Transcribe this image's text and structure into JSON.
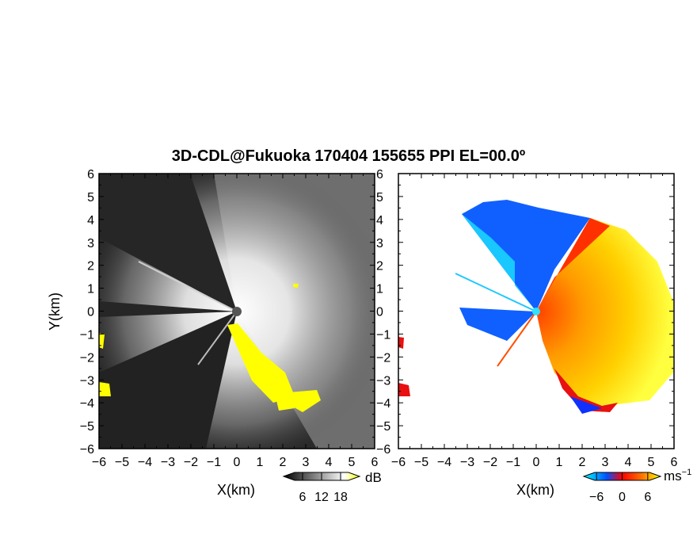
{
  "title": "3D-CDL@Fukuoka 170404 155655 PPI EL=00.0º",
  "chart_data": [
    {
      "type": "heatmap",
      "panel": "reflectivity",
      "xlabel": "X(km)",
      "ylabel": "Y(km)",
      "xlim": [
        -6,
        6
      ],
      "ylim": [
        -6,
        6
      ],
      "xticks": [
        "−6",
        "−5",
        "−4",
        "−3",
        "−2",
        "−1",
        "0",
        "1",
        "2",
        "3",
        "4",
        "5",
        "6"
      ],
      "yticks": [
        "6",
        "5",
        "4",
        "3",
        "2",
        "1",
        "0",
        "−1",
        "−2",
        "−3",
        "−4",
        "−5",
        "−6"
      ],
      "colorbar": {
        "unit": "dB",
        "range": [
          0,
          24
        ],
        "tick_labels": [
          "6",
          "12",
          "18"
        ],
        "colors": [
          "#000000",
          "#ffffff",
          "#ffff00"
        ]
      }
    },
    {
      "type": "heatmap",
      "panel": "doppler velocity",
      "xlabel": "X(km)",
      "xlim": [
        -6,
        6
      ],
      "ylim": [
        -6,
        6
      ],
      "xticks": [
        "−6",
        "−5",
        "−4",
        "−3",
        "−2",
        "−1",
        "0",
        "1",
        "2",
        "3",
        "4",
        "5",
        "6"
      ],
      "yticks": [
        "6",
        "5",
        "4",
        "3",
        "2",
        "1",
        "0",
        "−1",
        "−2",
        "−3",
        "−4",
        "−5",
        "−6"
      ],
      "colorbar": {
        "unit": "ms",
        "unit_exp": "−1",
        "range": [
          -9,
          9
        ],
        "tick_labels": [
          "−6",
          "0",
          "6"
        ],
        "colors": [
          "#00ffff",
          "#0050ff",
          "#ff0000",
          "#ff7000",
          "#ffff00"
        ]
      }
    }
  ]
}
